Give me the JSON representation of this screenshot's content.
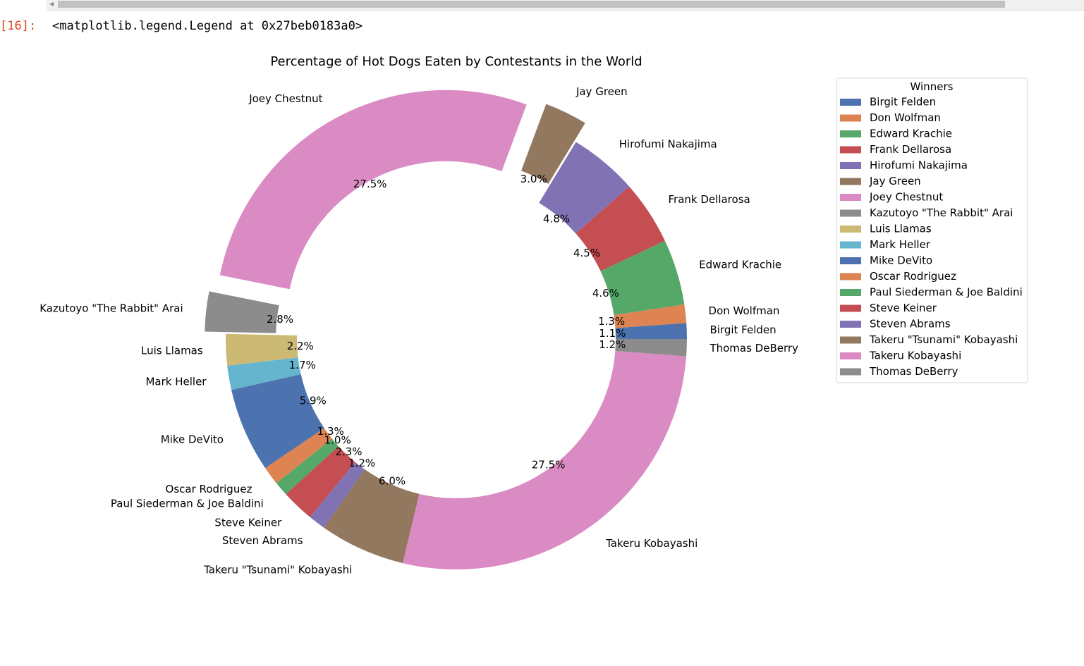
{
  "cell": {
    "prompt": "[16]:",
    "output_text": "<matplotlib.legend.Legend at 0x27beb0183a0>"
  },
  "chart_data": {
    "type": "donut",
    "title": "Percentage of Hot Dogs Eaten by Contestants in the World",
    "legend": {
      "title": "Winners",
      "placement": "right"
    },
    "legend_order": [
      "Birgit Felden",
      "Don Wolfman",
      "Edward Krachie",
      "Frank Dellarosa",
      "Hirofumi Nakajima",
      "Jay Green",
      "Joey Chestnut",
      "Kazutoyo \"The Rabbit\" Arai",
      "Luis Llamas",
      "Mark Heller",
      "Mike DeVito",
      "Oscar Rodriguez",
      "Paul Siederman & Joe Baldini",
      "Steve Keiner",
      "Steven Abrams",
      "Takeru \"Tsunami\" Kobayashi",
      "Takeru Kobayashi",
      "Thomas DeBerry"
    ],
    "slices": [
      {
        "label": "Birgit Felden",
        "value": 1.1,
        "pct_label": "1.1%",
        "color": "#4c72b0",
        "exploded": false
      },
      {
        "label": "Don Wolfman",
        "value": 1.3,
        "pct_label": "1.3%",
        "color": "#dd8452",
        "exploded": false
      },
      {
        "label": "Edward Krachie",
        "value": 4.6,
        "pct_label": "4.6%",
        "color": "#55a868",
        "exploded": false
      },
      {
        "label": "Frank Dellarosa",
        "value": 4.5,
        "pct_label": "4.5%",
        "color": "#c44e52",
        "exploded": false
      },
      {
        "label": "Hirofumi Nakajima",
        "value": 4.8,
        "pct_label": "4.8%",
        "color": "#8172b3",
        "exploded": false
      },
      {
        "label": "Jay Green",
        "value": 3.0,
        "pct_label": "3.0%",
        "color": "#937860",
        "exploded": true
      },
      {
        "label": "Joey Chestnut",
        "value": 27.5,
        "pct_label": "27.5%",
        "color": "#da8bc3",
        "exploded": true
      },
      {
        "label": "Kazutoyo \"The Rabbit\" Arai",
        "value": 2.8,
        "pct_label": "2.8%",
        "color": "#8c8c8c",
        "exploded": true
      },
      {
        "label": "Luis Llamas",
        "value": 2.2,
        "pct_label": "2.2%",
        "color": "#ccb974",
        "exploded": false
      },
      {
        "label": "Mark Heller",
        "value": 1.7,
        "pct_label": "1.7%",
        "color": "#64b5cd",
        "exploded": false
      },
      {
        "label": "Mike DeVito",
        "value": 5.9,
        "pct_label": "5.9%",
        "color": "#4c72b0",
        "exploded": false
      },
      {
        "label": "Oscar Rodriguez",
        "value": 1.3,
        "pct_label": "1.3%",
        "color": "#dd8452",
        "exploded": false
      },
      {
        "label": "Paul Siederman & Joe Baldini",
        "value": 1.0,
        "pct_label": "1.0%",
        "color": "#55a868",
        "exploded": false
      },
      {
        "label": "Steve Keiner",
        "value": 2.3,
        "pct_label": "2.3%",
        "color": "#c44e52",
        "exploded": false
      },
      {
        "label": "Steven Abrams",
        "value": 1.2,
        "pct_label": "1.2%",
        "color": "#8172b3",
        "exploded": false
      },
      {
        "label": "Takeru \"Tsunami\" Kobayashi",
        "value": 6.0,
        "pct_label": "6.0%",
        "color": "#937860",
        "exploded": false
      },
      {
        "label": "Takeru Kobayashi",
        "value": 27.5,
        "pct_label": "27.5%",
        "color": "#da8bc3",
        "exploded": false
      },
      {
        "label": "Thomas DeBerry",
        "value": 1.2,
        "pct_label": "1.2%",
        "color": "#8c8c8c",
        "exploded": false
      }
    ]
  }
}
